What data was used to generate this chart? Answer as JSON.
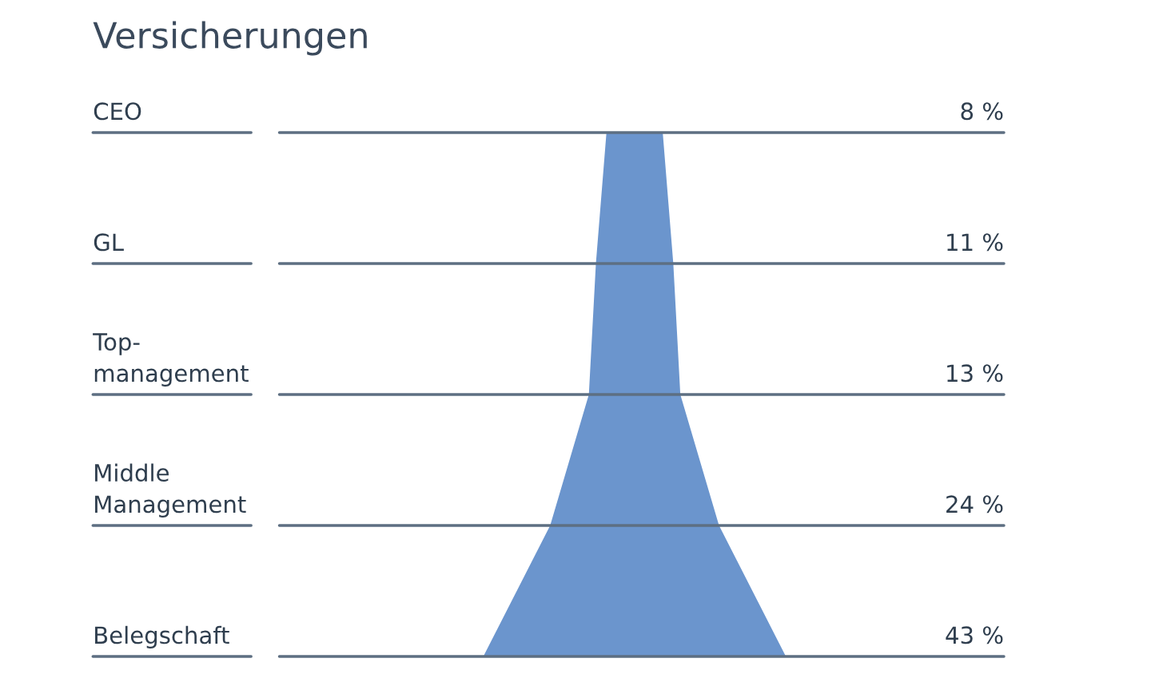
{
  "chart_data": {
    "type": "other",
    "title": "Versicherungen",
    "categories": [
      "CEO",
      "GL",
      "Top-\nmanagement",
      "Middle\nManagement",
      "Belegschaft"
    ],
    "values": [
      8,
      11,
      13,
      24,
      43
    ],
    "value_labels": [
      "8 %",
      "11 %",
      "13 %",
      "24 %",
      "43 %"
    ],
    "color": "#6b95cd"
  }
}
